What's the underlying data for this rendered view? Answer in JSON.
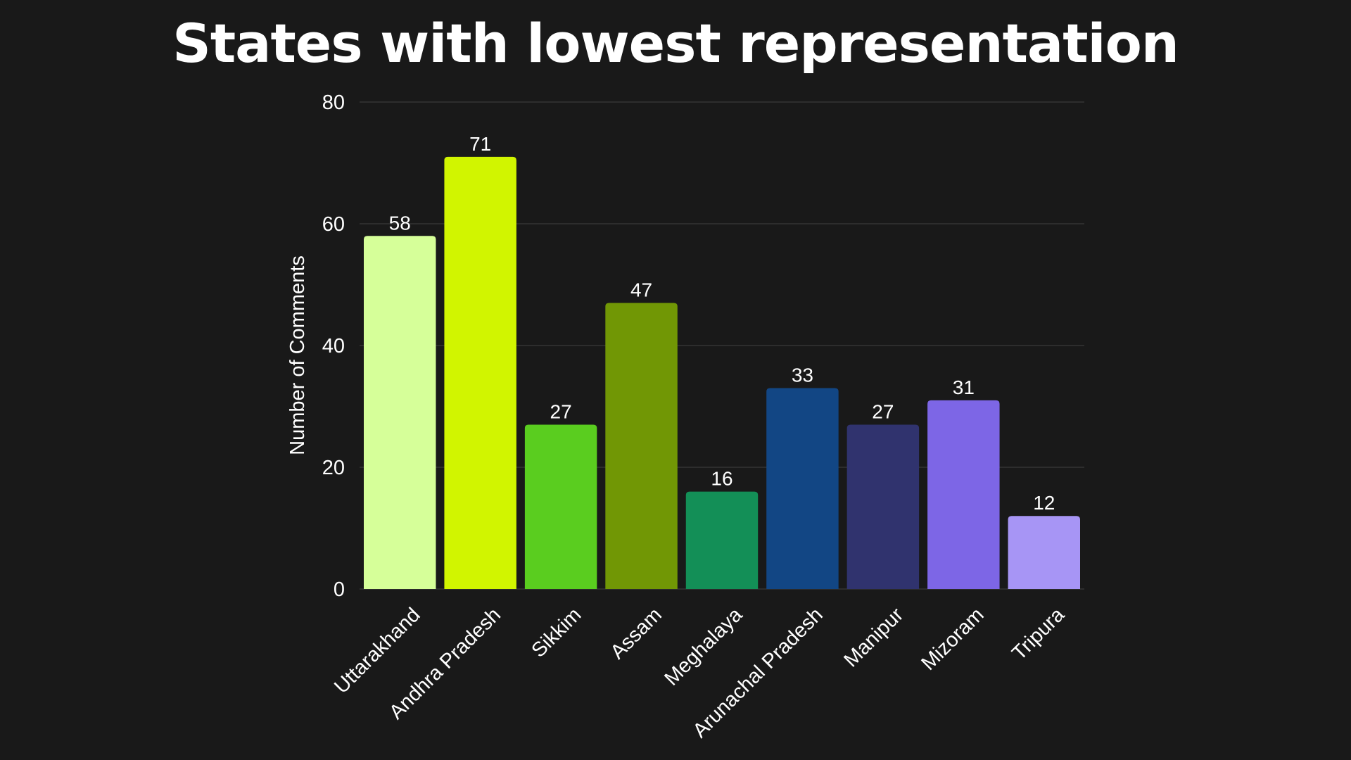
{
  "chart_data": {
    "type": "bar",
    "title": "States with lowest representation",
    "xlabel": "",
    "ylabel": "Number of Comments",
    "ylim": [
      0,
      80
    ],
    "yticks": [
      0,
      20,
      40,
      60,
      80
    ],
    "grid": true,
    "categories": [
      "Uttarakhand",
      "Andhra Pradesh",
      "Sikkim",
      "Assam",
      "Meghalaya",
      "Arunachal Pradesh",
      "Manipur",
      "Mizoram",
      "Tripura"
    ],
    "values": [
      58,
      71,
      27,
      47,
      16,
      33,
      27,
      31,
      12
    ],
    "colors": [
      "#d6ff99",
      "#d1f500",
      "#5acd1f",
      "#719705",
      "#138f57",
      "#124684",
      "#30336e",
      "#7d66e6",
      "#a795f5"
    ],
    "data_labels": true
  },
  "colors": {
    "background": "#191919",
    "text": "#ffffff",
    "grid": "#3a3a3a"
  }
}
